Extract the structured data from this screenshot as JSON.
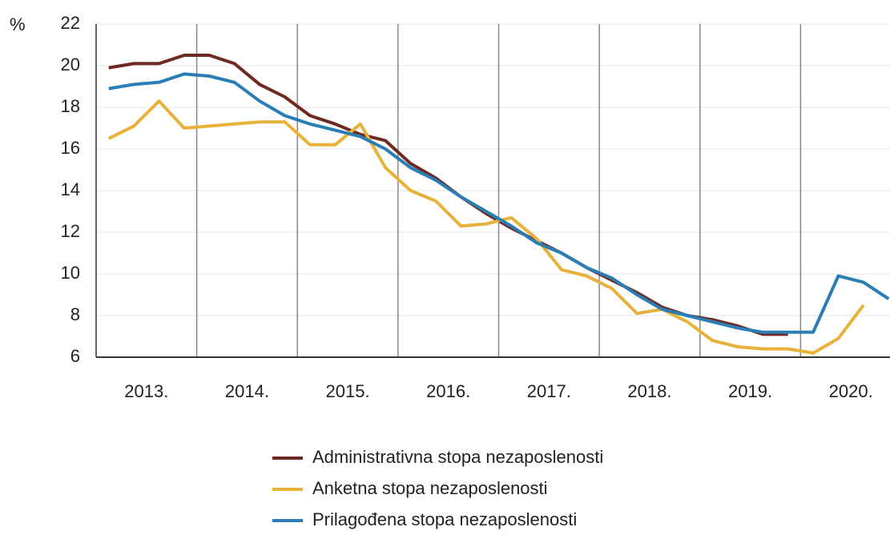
{
  "chart_data": {
    "type": "line",
    "y_label": "%",
    "categories": [
      null,
      "2013.",
      null,
      null,
      null,
      "2014.",
      null,
      null,
      null,
      "2015.",
      null,
      null,
      null,
      "2016.",
      null,
      null,
      null,
      "2017.",
      null,
      null,
      null,
      "2018.",
      null,
      null,
      null,
      "2019.",
      null,
      null,
      null,
      "2020.",
      null,
      null
    ],
    "series": [
      {
        "name": "Administrativna stopa nezaposlenosti",
        "color": "#6e2a22",
        "values": [
          19.9,
          20.1,
          20.1,
          20.5,
          20.5,
          20.1,
          19.1,
          18.5,
          17.6,
          17.2,
          16.7,
          16.4,
          15.3,
          14.6,
          13.7,
          12.9,
          12.2,
          11.6,
          11.0,
          10.3,
          9.7,
          9.1,
          8.4,
          8.0,
          7.8,
          7.5,
          7.1,
          7.1,
          null,
          null,
          null,
          null
        ]
      },
      {
        "name": "Anketna stopa nezaposlenosti",
        "color": "#e8b23a",
        "values": [
          16.5,
          17.1,
          18.3,
          17.0,
          17.1,
          17.2,
          17.3,
          17.3,
          16.2,
          16.2,
          17.2,
          15.1,
          14.0,
          13.5,
          12.3,
          12.4,
          12.7,
          11.7,
          10.2,
          9.9,
          9.3,
          8.1,
          8.3,
          7.7,
          6.8,
          6.5,
          6.4,
          6.4,
          6.2,
          6.9,
          8.5,
          null
        ]
      },
      {
        "name": "Prilagođena stopa nezaposlenosti",
        "color": "#2a7db5",
        "values": [
          18.9,
          19.1,
          19.2,
          19.6,
          19.5,
          19.2,
          18.3,
          17.6,
          17.2,
          16.9,
          16.6,
          16.0,
          15.1,
          14.5,
          13.7,
          13.0,
          12.3,
          11.5,
          11.0,
          10.3,
          9.8,
          9.0,
          8.3,
          8.0,
          7.7,
          7.4,
          7.2,
          7.2,
          7.2,
          9.9,
          9.6,
          8.8
        ]
      }
    ],
    "ylim": [
      6,
      22
    ],
    "yticks": [
      6,
      8,
      10,
      12,
      14,
      16,
      18,
      20,
      22
    ],
    "grid": true
  }
}
